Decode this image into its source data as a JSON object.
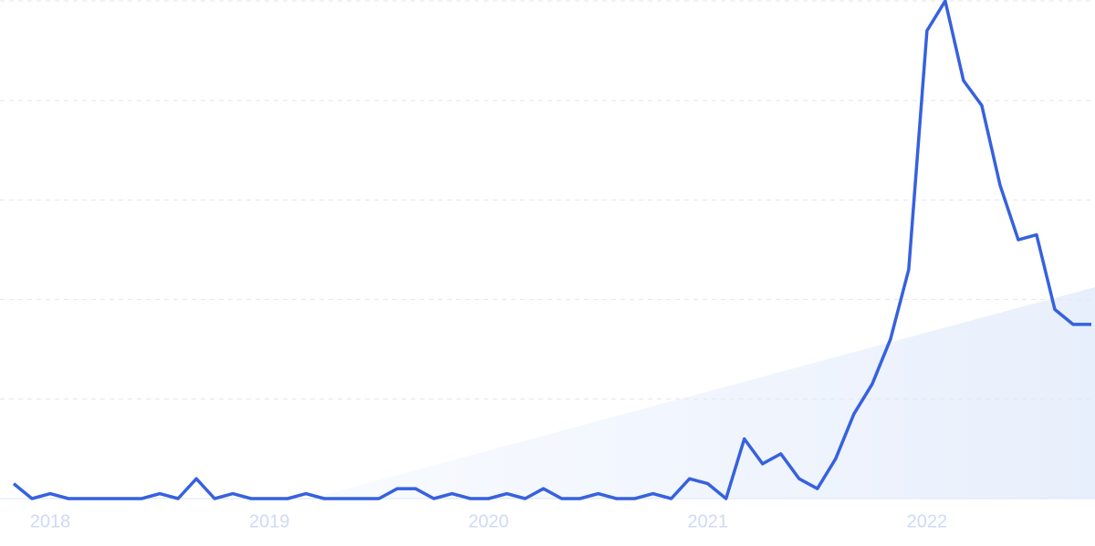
{
  "chart_data": {
    "type": "line",
    "categories": [
      null,
      null,
      "2018",
      null,
      null,
      null,
      null,
      null,
      null,
      null,
      null,
      null,
      null,
      null,
      "2019",
      null,
      null,
      null,
      null,
      null,
      null,
      null,
      null,
      null,
      null,
      null,
      "2020",
      null,
      null,
      null,
      null,
      null,
      null,
      null,
      null,
      null,
      null,
      null,
      "2021",
      null,
      null,
      null,
      null,
      null,
      null,
      null,
      null,
      null,
      null,
      null,
      "2022",
      null,
      null,
      null,
      null,
      null,
      null,
      null,
      null,
      null
    ],
    "series": [
      {
        "color": "#3661df",
        "values": [
          3,
          0,
          1,
          0,
          0,
          0,
          0,
          0,
          1,
          0,
          4,
          0,
          1,
          0,
          0,
          0,
          1,
          0,
          0,
          0,
          0,
          2,
          2,
          0,
          1,
          0,
          0,
          1,
          0,
          2,
          0,
          0,
          1,
          0,
          0,
          1,
          0,
          4,
          3,
          0,
          12,
          7,
          9,
          4,
          2,
          8,
          17,
          23,
          32,
          46,
          94,
          100,
          84,
          79,
          63,
          52,
          53,
          38,
          35,
          35
        ]
      }
    ],
    "ylim": [
      0,
      100
    ],
    "yticks": [
      0,
      20,
      40,
      60,
      80,
      100
    ],
    "grid": true
  }
}
